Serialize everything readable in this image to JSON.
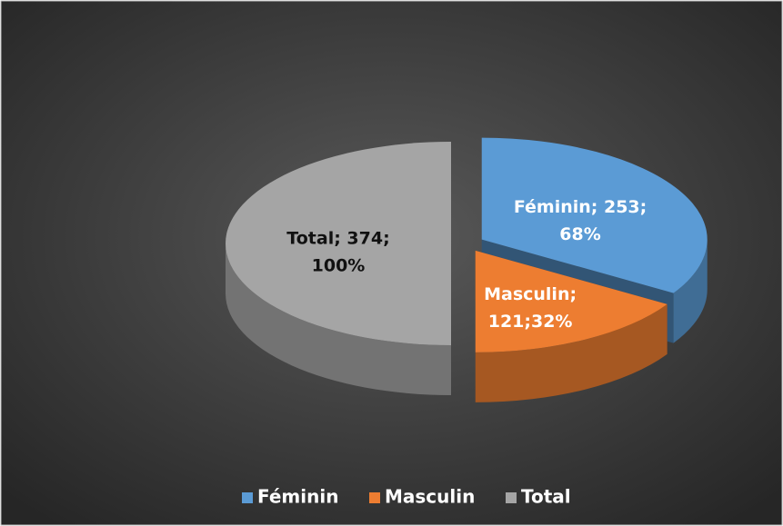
{
  "chart_data": {
    "type": "pie3d",
    "categories": [
      "Féminin",
      "Masculin",
      "Total"
    ],
    "values": [
      253,
      121,
      374
    ],
    "value_labels": [
      [
        "Féminin; 253;",
        "68%"
      ],
      [
        "Masculin;",
        "121;32%"
      ],
      [
        "Total; 374;",
        "100%"
      ]
    ],
    "colors": [
      "#5b9bd5",
      "#ed7d31",
      "#a5a5a5"
    ],
    "legend": "bottom"
  }
}
